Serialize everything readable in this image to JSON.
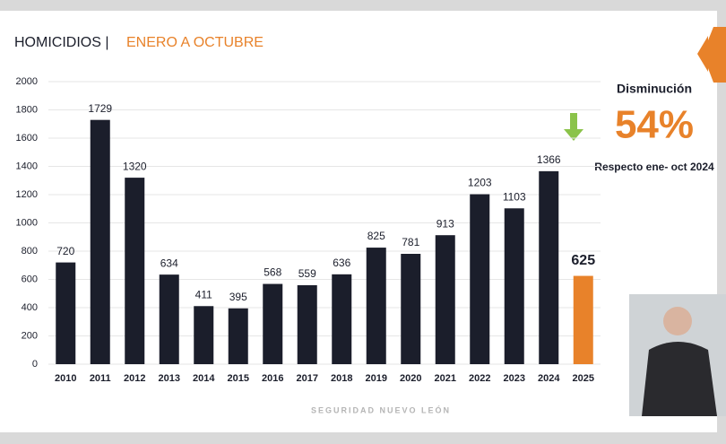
{
  "chart_data": {
    "type": "bar",
    "title": "HOMICIDIOS |",
    "subtitle": "ENERO A OCTUBRE",
    "categories": [
      "2010",
      "2011",
      "2012",
      "2013",
      "2014",
      "2015",
      "2016",
      "2017",
      "2018",
      "2019",
      "2020",
      "2021",
      "2022",
      "2023",
      "2024",
      "2025"
    ],
    "values": [
      720,
      1729,
      1320,
      634,
      411,
      395,
      568,
      559,
      636,
      825,
      781,
      913,
      1203,
      1103,
      1366,
      625
    ],
    "colors": [
      "#1b1e2b",
      "#1b1e2b",
      "#1b1e2b",
      "#1b1e2b",
      "#1b1e2b",
      "#1b1e2b",
      "#1b1e2b",
      "#1b1e2b",
      "#1b1e2b",
      "#1b1e2b",
      "#1b1e2b",
      "#1b1e2b",
      "#1b1e2b",
      "#1b1e2b",
      "#1b1e2b",
      "#e8822a"
    ],
    "ylim": [
      0,
      2000
    ],
    "yticks": [
      0,
      200,
      400,
      600,
      800,
      1000,
      1200,
      1400,
      1600,
      1800,
      2000
    ],
    "grid": true,
    "annotation": {
      "heading": "Disminución",
      "value": "54%",
      "note": "Respecto ene- oct 2024"
    },
    "footer": "SEGURIDAD NUEVO LEÓN"
  }
}
